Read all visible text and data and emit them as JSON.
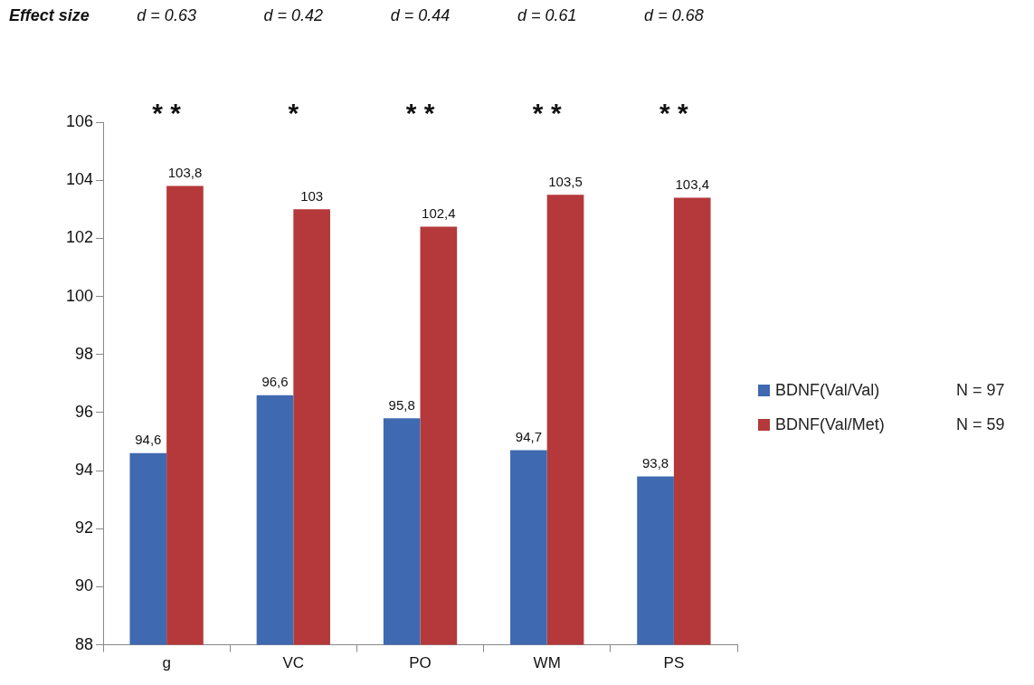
{
  "chart_data": {
    "type": "bar",
    "categories": [
      "g",
      "VC",
      "PO",
      "WM",
      "PS"
    ],
    "series": [
      {
        "name": "BDNF(Val/Val)",
        "color": "#3f69b0",
        "values": [
          94.6,
          96.6,
          95.8,
          94.7,
          93.8
        ],
        "value_labels": [
          "94,6",
          "96,6",
          "95,8",
          "94,7",
          "93,8"
        ]
      },
      {
        "name": "BDNF(Val/Met)",
        "color": "#b5393a",
        "values": [
          103.8,
          103,
          102.4,
          103.5,
          103.4
        ],
        "value_labels": [
          "103,8",
          "103",
          "102,4",
          "103,5",
          "103,4"
        ]
      }
    ],
    "ylim": [
      88,
      106
    ],
    "yticks": [
      88,
      90,
      92,
      94,
      96,
      98,
      100,
      102,
      104,
      106
    ],
    "grid": false,
    "legend": "right",
    "annotations": [
      "Effect size",
      "d = 0.63",
      "d = 0.42",
      "d = 0.44",
      "d = 0.61",
      "d = 0.68",
      "* *",
      "*",
      "* *",
      "* *",
      "* *",
      "N = 97",
      "N = 59"
    ]
  }
}
